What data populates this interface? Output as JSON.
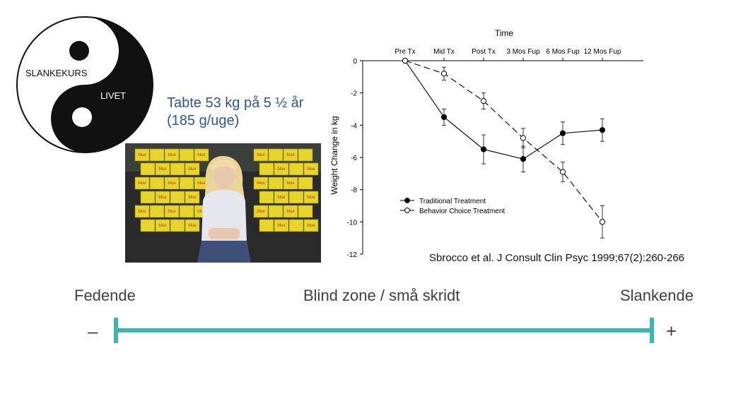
{
  "logo": {
    "text_top": "SLANKEKURS",
    "text_bottom": "LIVET"
  },
  "tagline": {
    "line1": "Tabte 53 kg på 5 ½ år",
    "line2": "(185 g/uge)"
  },
  "photo": {
    "box_text": "blue"
  },
  "colors": {
    "tagline": "#2f5597",
    "scale_line": "#3bb7b0",
    "scale_text": "#404040"
  },
  "chart_data": {
    "type": "line",
    "xlabel": "Time",
    "ylabel": "Weight Change in kg",
    "categories": [
      "Pre Tx",
      "Mid Tx",
      "Post Tx",
      "3 Mos Fup",
      "6 Mos Fup",
      "12 Mos Fup"
    ],
    "ylim": [
      -12,
      0
    ],
    "yticks": [
      "0",
      "-2",
      "-4",
      "-6",
      "-8",
      "-10",
      "-12"
    ],
    "legend_position": "lower-left",
    "series": [
      {
        "name": "Traditional Treatment",
        "marker": "filled",
        "style": "solid",
        "values": [
          0,
          -3.5,
          -5.5,
          -6.1,
          -4.5,
          -4.3
        ],
        "err": [
          0,
          0.5,
          0.9,
          0.8,
          0.7,
          0.7
        ]
      },
      {
        "name": "Behavior Choice Treatment",
        "marker": "open",
        "style": "dashed",
        "values": [
          0,
          -0.8,
          -2.5,
          -4.8,
          -6.9,
          -10.0
        ],
        "err": [
          0,
          0.4,
          0.5,
          0.6,
          0.6,
          1.0
        ]
      }
    ]
  },
  "citation": "Sbrocco et al. J Consult Clin Psyc 1999;67(2):260-266",
  "scale": {
    "left_label": "Fedende",
    "middle_label": "Blind zone / små skridt",
    "right_label": "Slankende",
    "minus": "–",
    "plus": "+"
  }
}
